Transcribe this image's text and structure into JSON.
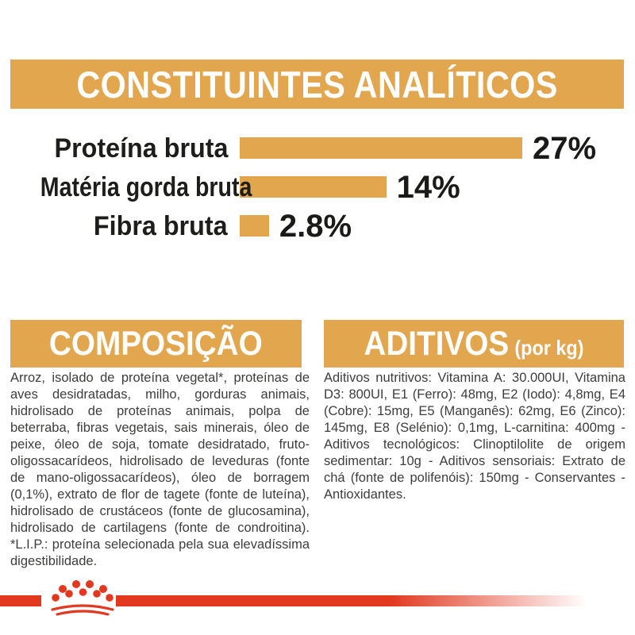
{
  "header": {
    "title": "CONSTITUINTES ANALÍTICOS"
  },
  "chart_data": {
    "type": "bar",
    "orientation": "horizontal",
    "categories": [
      "Proteína bruta",
      "Matéria gorda bruta",
      "Fibra bruta"
    ],
    "values": [
      27,
      14,
      2.8
    ],
    "value_labels": [
      "27%",
      "14%",
      "2.8%"
    ],
    "unit": "%",
    "xlim": [
      0,
      27
    ],
    "bar_color": "#e2a64e",
    "grid": false,
    "legend": false
  },
  "sections": {
    "composition": {
      "title": "COMPOSIÇÃO",
      "body": "Arroz, isolado de proteína vegetal*, proteínas de aves desidratadas, milho, gorduras animais, hidrolisado de proteínas animais, polpa de beterraba, fibras vegetais, sais minerais, óleo de peixe, óleo de soja, tomate desidratado, fruto-oligossacarídeos, hidrolisado de leveduras (fonte de mano-oligossacarídeos), óleo de borragem (0,1%), extrato de flor de tagete (fonte de luteína), hidrolisado de crustáceos (fonte de glucosamina), hidrolisado de cartilagens (fonte de condroitina). *L.I.P.: proteína selecionada pela sua elevadíssima digestibilidade."
    },
    "additives": {
      "title": "ADITIVOS",
      "subtitle": "(por kg)",
      "body": "Aditivos nutritivos: Vitamina A: 30.000UI, Vitamina D3: 800UI, E1 (Ferro): 48mg, E2 (Iodo): 4,8mg, E4 (Cobre): 15mg, E5 (Manganês): 62mg, E6 (Zinco): 145mg, E8 (Selénio): 0,1mg, L-carnitina: 400mg - Aditivos tecnológicos: Clinoptilolite de origem sedimentar: 10g - Aditivos sensoriais: Extrato de chá (fonte de polifenóis): 150mg - Conservantes - Antioxidantes."
    }
  },
  "footer": {
    "logo": "royal-canin-crown-logo"
  },
  "colors": {
    "gold": "#e2a64e",
    "red": "#e1381f",
    "label_black": "#1d1d1b",
    "body_text": "#3d3d3c",
    "banner_text": "#ffffff"
  }
}
